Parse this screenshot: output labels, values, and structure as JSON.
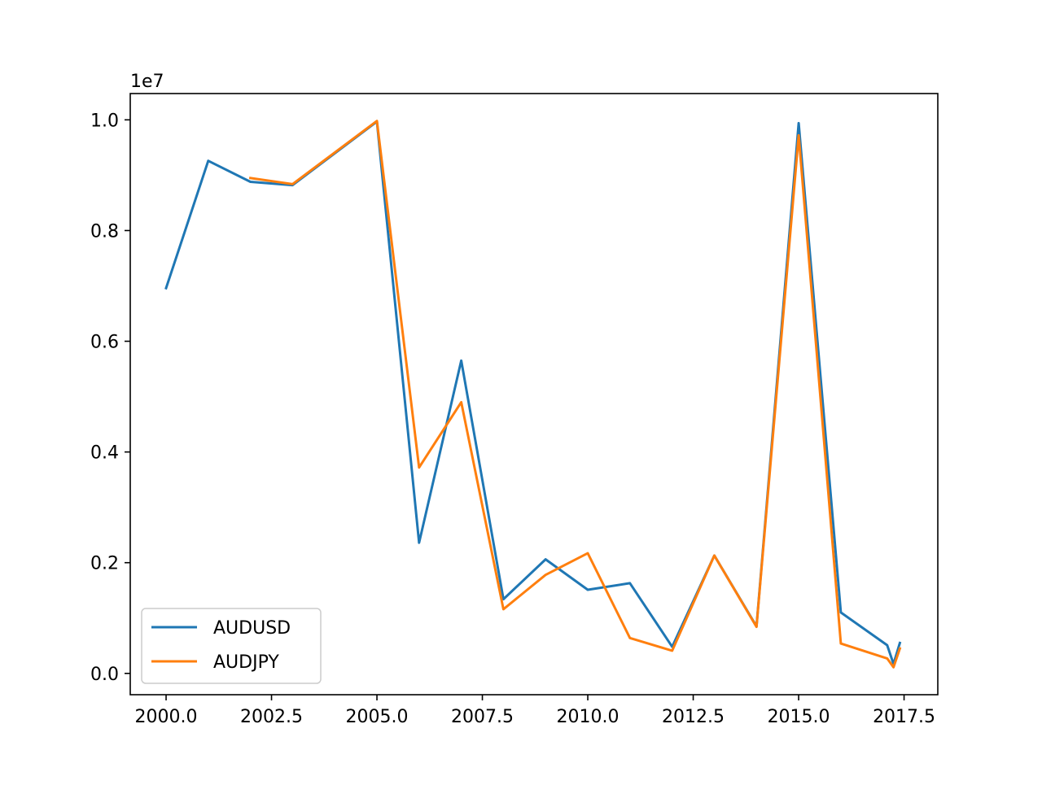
{
  "chart_data": {
    "type": "line",
    "title": "",
    "xlabel": "",
    "ylabel": "",
    "y_offset_label": "1e7",
    "xlim": [
      1999.15,
      2018.3
    ],
    "ylim": [
      -0.0385,
      1.0475
    ],
    "x_ticks": [
      2000.0,
      2002.5,
      2005.0,
      2007.5,
      2010.0,
      2012.5,
      2015.0,
      2017.5
    ],
    "x_tick_labels": [
      "2000.0",
      "2002.5",
      "2005.0",
      "2007.5",
      "2010.0",
      "2012.5",
      "2015.0",
      "2017.5"
    ],
    "y_ticks": [
      0.0,
      0.2,
      0.4,
      0.6,
      0.8,
      1.0
    ],
    "y_tick_labels": [
      "0.0",
      "0.2",
      "0.4",
      "0.6",
      "0.8",
      "1.0"
    ],
    "grid": false,
    "legend_position": "lower-left",
    "series": [
      {
        "name": "AUDUSD",
        "color": "#1f77b4",
        "x": [
          2000,
          2001,
          2002,
          2003,
          2005,
          2006,
          2007,
          2008,
          2009,
          2010,
          2011,
          2012,
          2013,
          2014,
          2015,
          2016,
          2017.1,
          2017.25,
          2017.4
        ],
        "y": [
          0.696,
          0.926,
          0.888,
          0.882,
          0.997,
          0.236,
          0.565,
          0.134,
          0.206,
          0.151,
          0.163,
          0.048,
          0.213,
          0.085,
          0.994,
          0.11,
          0.051,
          0.017,
          0.055
        ]
      },
      {
        "name": "AUDJPY",
        "color": "#ff7f0e",
        "x": [
          2002,
          2003,
          2005,
          2006,
          2007,
          2008,
          2009,
          2010,
          2011,
          2012,
          2013,
          2014,
          2015,
          2016,
          2017.1,
          2017.25,
          2017.4
        ],
        "y": [
          0.895,
          0.884,
          0.998,
          0.372,
          0.49,
          0.116,
          0.178,
          0.217,
          0.064,
          0.041,
          0.213,
          0.084,
          0.972,
          0.054,
          0.027,
          0.011,
          0.045
        ]
      }
    ]
  }
}
